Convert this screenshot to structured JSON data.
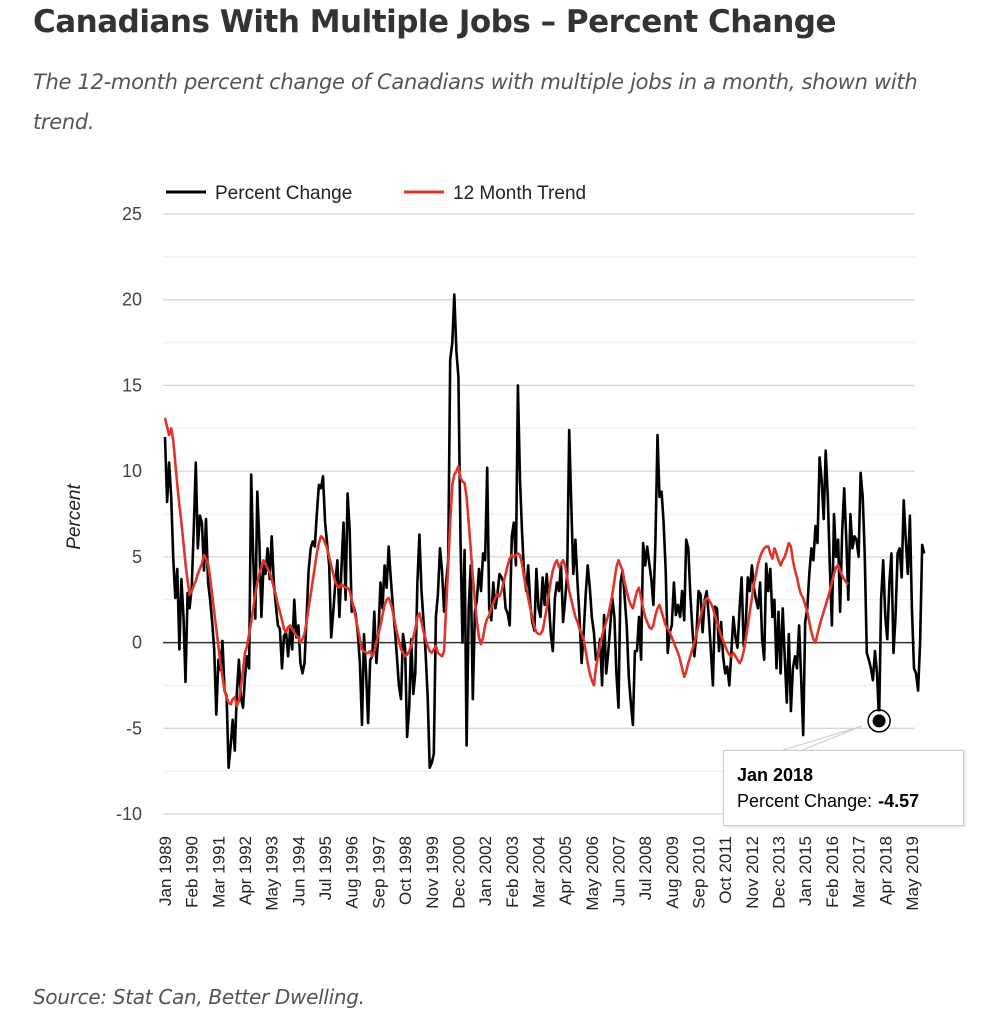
{
  "header": {
    "title": "Canadians With Multiple Jobs – Percent Change",
    "subtitle": "The 12-month percent change of Canadians with multiple jobs in a month, shown with trend."
  },
  "footer": {
    "source": "Source: Stat Can, Better Dwelling."
  },
  "tooltip": {
    "title": "Jan 2018",
    "label": "Percent Change:",
    "value": "-4.57"
  },
  "chart_data": {
    "type": "line",
    "title": "Canadians With Multiple Jobs – Percent Change",
    "xlabel": "",
    "ylabel": "Percent",
    "ylim": [
      -10,
      25
    ],
    "yticks": [
      -10,
      -5,
      0,
      5,
      10,
      15,
      20,
      25
    ],
    "grid": true,
    "legend_position": "top-left",
    "x_start": "Jan 1989",
    "x_tick_labels": [
      "Jan 1989",
      "Feb 1990",
      "Mar 1991",
      "Apr 1992",
      "May 1993",
      "Jun 1994",
      "Jul 1995",
      "Aug 1996",
      "Sep 1997",
      "Oct 1998",
      "Nov 1999",
      "Dec 2000",
      "Jan 2002",
      "Feb 2003",
      "Mar 2004",
      "Apr 2005",
      "May 2006",
      "Jun 2007",
      "Jul 2008",
      "Aug 2009",
      "Sep 2010",
      "Oct 2011",
      "Nov 2012",
      "Dec 2013",
      "Jan 2015",
      "Feb 2016",
      "Mar 2017",
      "Apr 2018",
      "May 2019"
    ],
    "x_tick_every_months": 13,
    "series": [
      {
        "name": "Percent Change",
        "color": "#000000",
        "values": [
          12.0,
          8.2,
          10.5,
          8.5,
          5.0,
          2.6,
          4.3,
          -0.4,
          3.7,
          1.5,
          -2.3,
          2.9,
          2.0,
          3.2,
          6.5,
          10.5,
          5.5,
          7.4,
          7.0,
          4.2,
          7.2,
          3.5,
          2.5,
          1.2,
          -0.4,
          -4.2,
          -1.0,
          -1.6,
          0.1,
          -2.8,
          -3.1,
          -7.3,
          -6.0,
          -4.5,
          -6.3,
          -3.0,
          -1.0,
          -3.2,
          -3.8,
          -2.0,
          -0.8,
          -1.5,
          9.8,
          5.0,
          1.4,
          8.8,
          5.8,
          1.5,
          4.5,
          4.0,
          5.5,
          3.7,
          6.2,
          3.5,
          2.2,
          1.0,
          0.8,
          -1.5,
          0.4,
          0.6,
          -0.8,
          0.8,
          -0.4,
          2.5,
          0.3,
          1.0,
          -1.2,
          -1.8,
          -1.2,
          1.5,
          4.2,
          5.5,
          5.9,
          5.6,
          7.5,
          9.2,
          9.0,
          9.7,
          7.0,
          5.8,
          4.5,
          0.3,
          1.8,
          3.5,
          4.8,
          1.5,
          4.4,
          7.0,
          2.5,
          8.7,
          6.5,
          1.8,
          2.1,
          1.6,
          0.5,
          -1.2,
          -4.8,
          0.5,
          -1.8,
          -4.7,
          -1.0,
          -0.8,
          1.8,
          -1.2,
          0.5,
          3.5,
          2.0,
          4.5,
          3.2,
          5.6,
          3.8,
          2.2,
          0.8,
          -0.8,
          -2.5,
          -3.3,
          0.5,
          -0.3,
          -5.5,
          -3.8,
          0.2,
          -3.0,
          -1.8,
          3.5,
          6.3,
          3.0,
          1.2,
          -0.6,
          -3.2,
          -7.3,
          -7.0,
          -6.5,
          1.5,
          2.8,
          5.5,
          4.2,
          1.8,
          3.5,
          4.8,
          16.5,
          17.5,
          20.3,
          17.0,
          15.5,
          6.0,
          0.0,
          5.4,
          -6.0,
          2.0,
          4.5,
          -3.3,
          1.8,
          2.5,
          4.3,
          3.0,
          5.2,
          4.8,
          10.2,
          2.0,
          1.3,
          3.5,
          2.0,
          2.8,
          4.0,
          3.8,
          3.5,
          2.0,
          1.7,
          1.0,
          6.2,
          7.0,
          4.5,
          15.0,
          9.5,
          6.5,
          4.0,
          3.0,
          4.5,
          2.2,
          1.2,
          0.7,
          4.3,
          2.0,
          1.5,
          3.8,
          2.2,
          4.0,
          2.5,
          0.5,
          -0.5,
          2.6,
          3.5,
          3.0,
          4.6,
          1.2,
          2.5,
          4.0,
          12.4,
          8.0,
          4.0,
          6.0,
          3.5,
          1.5,
          -1.2,
          0.5,
          2.8,
          4.5,
          3.2,
          1.5,
          0.6,
          -1.0,
          -0.8,
          0.2,
          -2.5,
          1.6,
          -1.8,
          -0.6,
          1.0,
          2.6,
          1.5,
          -1.8,
          -3.8,
          3.5,
          4.2,
          2.7,
          1.0,
          -2.0,
          -3.5,
          -4.8,
          -0.5,
          -0.5,
          1.5,
          -1.0,
          5.8,
          4.5,
          5.6,
          4.6,
          3.7,
          2.2,
          5.8,
          12.1,
          8.5,
          8.8,
          7.0,
          4.2,
          -0.6,
          0.6,
          1.0,
          3.5,
          1.6,
          2.2,
          1.5,
          3.0,
          1.3,
          6.0,
          5.5,
          2.8,
          0.8,
          -0.8,
          0.5,
          3.0,
          2.8,
          0.6,
          2.5,
          3.0,
          1.5,
          -0.4,
          -2.5,
          2.1,
          2.0,
          -0.5,
          1.2,
          -0.8,
          -1.8,
          -1.4,
          -2.5,
          -0.5,
          1.5,
          0.3,
          -0.3,
          2.0,
          3.8,
          -0.2,
          1.0,
          3.8,
          3.0,
          4.5,
          3.2,
          2.5,
          2.0,
          3.5,
          0.2,
          -1.0,
          4.6,
          3.0,
          4.3,
          1.5,
          2.5,
          -1.5,
          1.8,
          -1.8,
          2.0,
          -0.8,
          -3.5,
          0.5,
          -4.0,
          -1.5,
          -0.8,
          -1.5,
          1.0,
          -2.0,
          -5.4,
          1.2,
          2.0,
          4.0,
          5.5,
          4.8,
          6.8,
          5.8,
          10.8,
          9.5,
          7.2,
          11.2,
          8.5,
          4.5,
          1.0,
          7.5,
          5.0,
          6.0,
          1.8,
          6.5,
          9.0,
          6.0,
          2.5,
          7.5,
          5.5,
          6.2,
          6.0,
          5.0,
          9.9,
          8.5,
          5.2,
          -0.6,
          -1.0,
          -1.5,
          -2.2,
          -0.5,
          -1.8,
          -4.57,
          2.5,
          4.8,
          1.5,
          0.2,
          3.5,
          5.2,
          -0.6,
          1.5,
          5.2,
          5.5,
          3.8,
          8.3,
          6.0,
          4.0,
          7.4,
          2.0,
          -1.5,
          -1.8,
          -2.8,
          0.0,
          5.7,
          5.2
        ],
        "note": "Monthly values approximated from the plotted line; the Jan 2018 value (-4.57) is shown in the tooltip."
      },
      {
        "name": "12 Month Trend",
        "color": "#e0352b",
        "values": [
          13.1,
          12.6,
          12.1,
          12.5,
          11.8,
          10.5,
          9.2,
          8.0,
          7.0,
          5.8,
          4.6,
          3.6,
          2.8,
          3.0,
          3.3,
          3.6,
          4.0,
          4.3,
          4.6,
          5.1,
          4.9,
          4.6,
          3.8,
          2.8,
          1.8,
          0.8,
          -0.2,
          -1.2,
          -2.0,
          -2.8,
          -3.2,
          -3.5,
          -3.6,
          -3.3,
          -3.2,
          -3.7,
          -3.4,
          -2.6,
          -1.6,
          -0.6,
          -0.2,
          0.5,
          1.2,
          2.0,
          2.8,
          3.5,
          4.0,
          4.4,
          4.8,
          4.6,
          4.3,
          4.1,
          3.7,
          3.2,
          2.8,
          2.2,
          1.8,
          1.3,
          0.8,
          0.6,
          0.9,
          1.0,
          0.8,
          0.6,
          0.4,
          0.3,
          0.0,
          0.2,
          0.5,
          1.2,
          2.0,
          2.8,
          3.6,
          4.4,
          5.2,
          5.8,
          6.2,
          6.1,
          5.8,
          5.5,
          5.0,
          4.5,
          4.0,
          3.5,
          3.3,
          3.2,
          3.4,
          3.3,
          3.2,
          3.2,
          3.0,
          2.5,
          2.0,
          1.4,
          0.8,
          0.2,
          -0.4,
          -0.5,
          -0.6,
          -0.6,
          -0.5,
          -0.8,
          -0.5,
          0.0,
          0.5,
          1.0,
          1.6,
          2.2,
          2.5,
          2.6,
          2.3,
          1.8,
          1.2,
          0.6,
          0.1,
          -0.4,
          -0.6,
          -0.8,
          -0.7,
          -0.5,
          -0.2,
          0.3,
          0.8,
          1.5,
          1.7,
          1.2,
          0.6,
          0.2,
          -0.2,
          -0.5,
          -0.6,
          -0.4,
          -0.2,
          -0.6,
          -0.7,
          -0.8,
          -0.5,
          2.0,
          4.5,
          7.0,
          9.2,
          9.8,
          10.0,
          10.3,
          9.6,
          9.4,
          9.3,
          8.5,
          7.0,
          5.5,
          3.8,
          2.5,
          1.2,
          0.3,
          -0.1,
          0.3,
          1.0,
          1.4,
          1.6,
          2.0,
          2.3,
          2.6,
          2.8,
          2.7,
          3.0,
          3.5,
          4.0,
          4.5,
          4.9,
          5.1,
          5.0,
          5.1,
          5.2,
          5.1,
          4.6,
          3.8,
          3.2,
          2.6,
          2.0,
          1.5,
          0.9,
          0.6,
          0.5,
          0.5,
          0.7,
          1.3,
          2.0,
          2.8,
          3.6,
          4.2,
          4.6,
          4.8,
          4.4,
          4.6,
          4.8,
          4.5,
          3.8,
          3.0,
          2.5,
          2.0,
          1.5,
          1.2,
          0.8,
          0.5,
          0.2,
          -0.5,
          -1.2,
          -1.8,
          -2.2,
          -2.5,
          -1.5,
          -0.8,
          -0.2,
          0.4,
          0.8,
          1.2,
          1.6,
          2.2,
          2.8,
          3.6,
          4.4,
          4.8,
          4.5,
          4.2,
          3.5,
          3.0,
          2.5,
          2.2,
          2.0,
          2.5,
          3.0,
          3.2,
          2.6,
          2.0,
          1.5,
          1.2,
          0.9,
          0.8,
          1.0,
          1.6,
          2.0,
          2.2,
          1.8,
          1.4,
          1.0,
          0.8,
          0.6,
          0.3,
          0.0,
          -0.3,
          -0.6,
          -1.0,
          -1.5,
          -2.0,
          -1.7,
          -1.2,
          -0.8,
          -0.4,
          0.0,
          0.5,
          1.0,
          1.5,
          2.0,
          2.4,
          2.6,
          2.5,
          2.3,
          2.0,
          1.6,
          1.2,
          0.8,
          0.4,
          0.1,
          -0.2,
          -0.5,
          -0.7,
          -0.8,
          -0.6,
          -0.8,
          -1.0,
          -1.2,
          -1.0,
          -0.5,
          0.2,
          1.0,
          1.8,
          2.6,
          3.4,
          4.0,
          4.6,
          5.0,
          5.3,
          5.5,
          5.6,
          5.6,
          5.2,
          4.9,
          5.5,
          5.2,
          4.8,
          4.5,
          4.8,
          5.0,
          5.4,
          5.8,
          5.6,
          4.8,
          4.2,
          3.8,
          3.2,
          2.8,
          2.6,
          2.2,
          1.8,
          1.2,
          0.6,
          0.2,
          0.0,
          0.5,
          1.0,
          1.4,
          1.8,
          2.2,
          2.6,
          3.0,
          3.5,
          4.0,
          4.4,
          4.5,
          4.2,
          3.9,
          3.7,
          3.5,
          3.4
        ]
      }
    ]
  }
}
